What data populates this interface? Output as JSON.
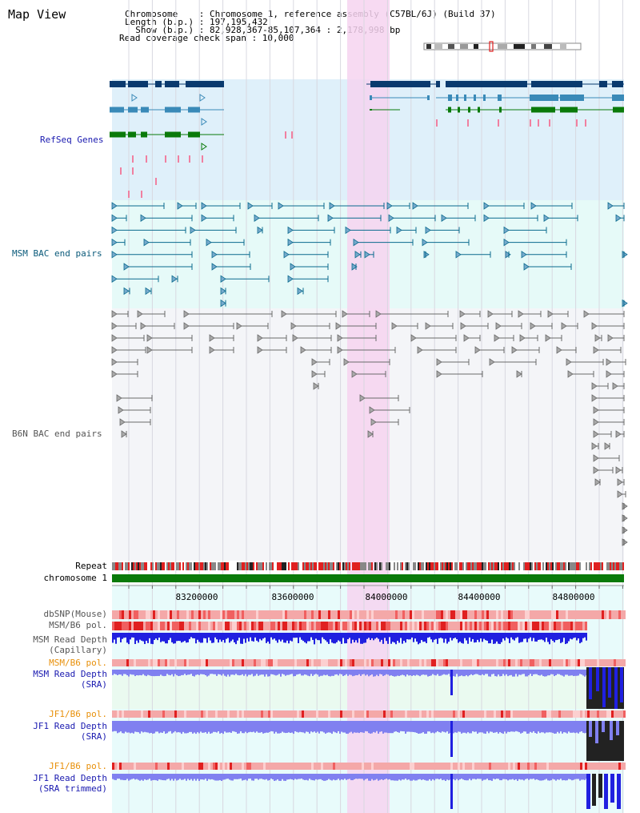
{
  "header": {
    "title": "Map View",
    "chromosome_line": "Chromosome    : Chromosome 1, reference assembly (C57BL/6J) (Build 37)",
    "length_line": "Length (b.p.) : 197,195,432",
    "show_line": "  Show (b.p.) : 82,928,367-85,107,364 : 2,178,998 bp",
    "coverage_line": "Read coverage check span : 10,000"
  },
  "tracks": {
    "refseq": "RefSeq Genes",
    "msm_bac": "MSM BAC end pairs",
    "b6n_bac": "B6N BAC end pairs",
    "repeat": "Repeat",
    "chromosome": "chromosome 1",
    "dbsnp": "dbSNP(Mouse)",
    "msm_b6_pol_1": "MSM/B6 pol.",
    "msm_read_depth_cap_1": "MSM Read Depth",
    "msm_read_depth_cap_2": "(Capillary)",
    "msm_b6_pol_2": "MSM/B6 pol.",
    "msm_read_depth_sra_1": "MSM Read Depth",
    "msm_read_depth_sra_2": "(SRA)",
    "jf1_b6_pol_1": "JF1/B6 pol.",
    "jf1_read_depth_sra_1": "JF1 Read Depth",
    "jf1_read_depth_sra_2": "(SRA)",
    "jf1_b6_pol_2": "JF1/B6 pol.",
    "jf1_read_depth_trim_1": "JF1 Read Depth",
    "jf1_read_depth_trim_2": "(SRA trimmed)"
  },
  "axis": {
    "ticks": [
      "83200000",
      "83600000",
      "84000000",
      "84400000",
      "84800000"
    ]
  },
  "colors": {
    "refseq_bg": "#dff0fa",
    "msm_bg": "#e6faf8",
    "b6n_bg": "#f4f5f8",
    "highlight": "#f6d4f0",
    "gene_dark": "#0a3a6e",
    "gene_mid": "#3a8ab8",
    "gene_green": "#0a7a0a",
    "msm_pair": "#0a6a8e",
    "b6n_pair": "#6a6a6a",
    "chromosome_bar": "#0a7a0a",
    "depth_blue": "#2020e0",
    "depth_light": "#8080f0",
    "pol_pink": "#f4a0a0",
    "pol_red": "#e83030",
    "sra_label": "#1a1ab0",
    "pol_label": "#e8900a"
  }
}
